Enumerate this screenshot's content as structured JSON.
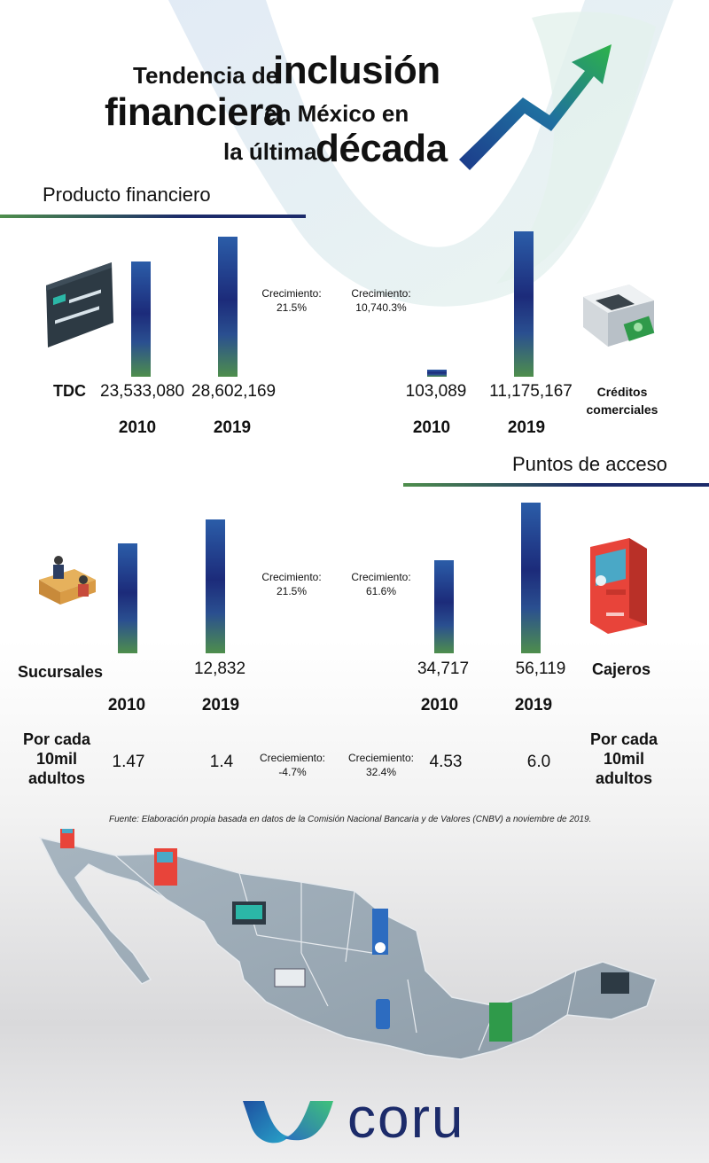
{
  "title": {
    "line1_small": "Tendencia de",
    "line1_big": "inclusión",
    "line2_big": "financiera",
    "line2_small": "en México en",
    "line3_small": "la última",
    "line3_big": "década"
  },
  "sections": {
    "producto": "Producto financiero",
    "puntos": "Puntos de acceso"
  },
  "source": "Fuente: Elaboración propia basada en datos de la  Comisión Nacional Bancaria y de Valores (CNBV) a noviembre de 2019.",
  "logo": "coru",
  "colors": {
    "bar_top": "#2b5da8",
    "bar_mid": "#1c2b7a",
    "bar_bottom": "#4e8e4c",
    "line_green": "#4e8e4c",
    "line_navy": "#1c2b6a"
  },
  "chart_data": [
    {
      "type": "bar",
      "category": "TDC",
      "categories": [
        "2010",
        "2019"
      ],
      "values": [
        23533080,
        28602169
      ],
      "value_labels": [
        "23,533,080",
        "28,602,169"
      ],
      "growth_label": "Crecimiento:",
      "growth_value": "21.5%"
    },
    {
      "type": "bar",
      "category": "Créditos comerciales",
      "categories": [
        "2010",
        "2019"
      ],
      "values": [
        103089,
        11175167
      ],
      "value_labels": [
        "103,089",
        "11,175,167"
      ],
      "growth_label": "Crecimiento:",
      "growth_value": "10,740.3%"
    },
    {
      "type": "bar",
      "category": "Sucursales",
      "categories": [
        "2010",
        "2019"
      ],
      "values": [
        10560,
        12832
      ],
      "value_labels": [
        "",
        "12,832"
      ],
      "growth_label": "Crecimiento:",
      "growth_value": "21.5%",
      "per_label": "Por cada 10mil adultos",
      "per_values": [
        "1.47",
        "1.4"
      ],
      "per_growth_label": "Creciemiento:",
      "per_growth_value": "-4.7%"
    },
    {
      "type": "bar",
      "category": "Cajeros",
      "categories": [
        "2010",
        "2019"
      ],
      "values": [
        34717,
        56119
      ],
      "value_labels": [
        "34,717",
        "56,119"
      ],
      "growth_label": "Crecimiento:",
      "growth_value": "61.6%",
      "per_label": "Por cada 10mil adultos",
      "per_values": [
        "4.53",
        "6.0"
      ],
      "per_growth_label": "Creciemiento:",
      "per_growth_value": "32.4%"
    }
  ]
}
